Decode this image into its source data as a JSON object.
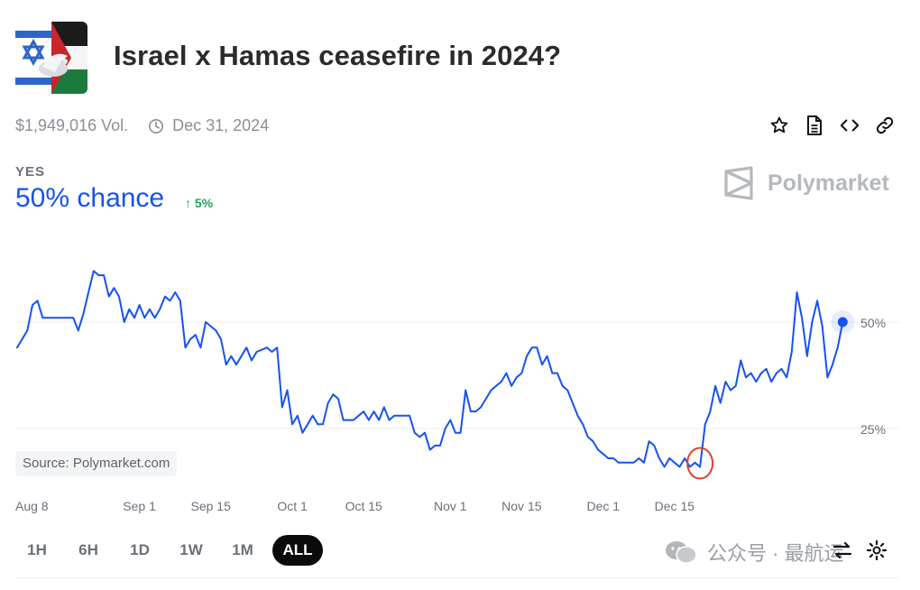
{
  "market": {
    "title": "Israel x Hamas ceasefire in 2024?",
    "volume": "$1,949,016 Vol.",
    "end_date": "Dec 31, 2024",
    "outcome_label": "YES",
    "chance": "50% chance",
    "change": "5%",
    "brand": "Polymarket",
    "source": "Source: Polymarket.com"
  },
  "actions": [
    "star-icon",
    "document-icon",
    "embed-code-icon",
    "link-icon"
  ],
  "time_ranges": [
    {
      "label": "1H",
      "active": false
    },
    {
      "label": "6H",
      "active": false
    },
    {
      "label": "1D",
      "active": false
    },
    {
      "label": "1W",
      "active": false
    },
    {
      "label": "1M",
      "active": false
    },
    {
      "label": "ALL",
      "active": true
    }
  ],
  "watermark": {
    "text": "公众号 · 最航运"
  },
  "colors": {
    "line": "#1652f0",
    "green": "#27a35a",
    "highlight_circle": "#e0402b"
  },
  "chart_data": {
    "type": "line",
    "x_tick_labels": [
      "Aug 8",
      "Sep 1",
      "Sep 15",
      "Oct 1",
      "Oct 15",
      "Nov 1",
      "Nov 15",
      "Dec 1",
      "Dec 15"
    ],
    "x_tick_dates": [
      "2024-08-08",
      "2024-09-01",
      "2024-09-15",
      "2024-10-01",
      "2024-10-15",
      "2024-11-01",
      "2024-11-15",
      "2024-12-01",
      "2024-12-15"
    ],
    "y_tick_labels": [
      "50%",
      "25%"
    ],
    "y_ticks": [
      50,
      25
    ],
    "ylim": [
      13,
      64
    ],
    "grid": true,
    "series": [
      {
        "points": [
          [
            "2024-08-08",
            44
          ],
          [
            "2024-08-09",
            46
          ],
          [
            "2024-08-10",
            48
          ],
          [
            "2024-08-11",
            54
          ],
          [
            "2024-08-12",
            55
          ],
          [
            "2024-08-13",
            51
          ],
          [
            "2024-08-15",
            51
          ],
          [
            "2024-08-17",
            51
          ],
          [
            "2024-08-19",
            51
          ],
          [
            "2024-08-20",
            48
          ],
          [
            "2024-08-21",
            52
          ],
          [
            "2024-08-22",
            57
          ],
          [
            "2024-08-23",
            62
          ],
          [
            "2024-08-24",
            61
          ],
          [
            "2024-08-25",
            61
          ],
          [
            "2024-08-26",
            56
          ],
          [
            "2024-08-27",
            58
          ],
          [
            "2024-08-28",
            56
          ],
          [
            "2024-08-29",
            50
          ],
          [
            "2024-08-30",
            53
          ],
          [
            "2024-08-31",
            51
          ],
          [
            "2024-09-01",
            54
          ],
          [
            "2024-09-02",
            51
          ],
          [
            "2024-09-03",
            53
          ],
          [
            "2024-09-04",
            51
          ],
          [
            "2024-09-05",
            53
          ],
          [
            "2024-09-06",
            56
          ],
          [
            "2024-09-07",
            55
          ],
          [
            "2024-09-08",
            57
          ],
          [
            "2024-09-09",
            55
          ],
          [
            "2024-09-10",
            44
          ],
          [
            "2024-09-11",
            46
          ],
          [
            "2024-09-12",
            47
          ],
          [
            "2024-09-13",
            44
          ],
          [
            "2024-09-14",
            50
          ],
          [
            "2024-09-16",
            48
          ],
          [
            "2024-09-17",
            46
          ],
          [
            "2024-09-18",
            40
          ],
          [
            "2024-09-19",
            42
          ],
          [
            "2024-09-20",
            40
          ],
          [
            "2024-09-21",
            42
          ],
          [
            "2024-09-22",
            44
          ],
          [
            "2024-09-23",
            41
          ],
          [
            "2024-09-24",
            43
          ],
          [
            "2024-09-26",
            44
          ],
          [
            "2024-09-27",
            43
          ],
          [
            "2024-09-28",
            44
          ],
          [
            "2024-09-29",
            30
          ],
          [
            "2024-09-30",
            34
          ],
          [
            "2024-10-01",
            26
          ],
          [
            "2024-10-02",
            28
          ],
          [
            "2024-10-03",
            24
          ],
          [
            "2024-10-04",
            26
          ],
          [
            "2024-10-05",
            28
          ],
          [
            "2024-10-06",
            26
          ],
          [
            "2024-10-07",
            26
          ],
          [
            "2024-10-08",
            31
          ],
          [
            "2024-10-09",
            33
          ],
          [
            "2024-10-10",
            32
          ],
          [
            "2024-10-11",
            27
          ],
          [
            "2024-10-13",
            27
          ],
          [
            "2024-10-14",
            28
          ],
          [
            "2024-10-15",
            29
          ],
          [
            "2024-10-16",
            27
          ],
          [
            "2024-10-17",
            29
          ],
          [
            "2024-10-18",
            27
          ],
          [
            "2024-10-19",
            30
          ],
          [
            "2024-10-20",
            27
          ],
          [
            "2024-10-21",
            28
          ],
          [
            "2024-10-22",
            28
          ],
          [
            "2024-10-24",
            28
          ],
          [
            "2024-10-25",
            24
          ],
          [
            "2024-10-26",
            23
          ],
          [
            "2024-10-27",
            24
          ],
          [
            "2024-10-28",
            20
          ],
          [
            "2024-10-29",
            21
          ],
          [
            "2024-10-30",
            21
          ],
          [
            "2024-10-31",
            25
          ],
          [
            "2024-11-01",
            27
          ],
          [
            "2024-11-02",
            24
          ],
          [
            "2024-11-03",
            24
          ],
          [
            "2024-11-04",
            34
          ],
          [
            "2024-11-05",
            29
          ],
          [
            "2024-11-06",
            29
          ],
          [
            "2024-11-07",
            30
          ],
          [
            "2024-11-08",
            32
          ],
          [
            "2024-11-09",
            34
          ],
          [
            "2024-11-10",
            35
          ],
          [
            "2024-11-11",
            36
          ],
          [
            "2024-11-12",
            38
          ],
          [
            "2024-11-13",
            35
          ],
          [
            "2024-11-14",
            37
          ],
          [
            "2024-11-15",
            38
          ],
          [
            "2024-11-16",
            42
          ],
          [
            "2024-11-17",
            44
          ],
          [
            "2024-11-18",
            44
          ],
          [
            "2024-11-19",
            40
          ],
          [
            "2024-11-20",
            42
          ],
          [
            "2024-11-21",
            38
          ],
          [
            "2024-11-22",
            38
          ],
          [
            "2024-11-23",
            35
          ],
          [
            "2024-11-24",
            34
          ],
          [
            "2024-11-25",
            31
          ],
          [
            "2024-11-26",
            28
          ],
          [
            "2024-11-27",
            26
          ],
          [
            "2024-11-28",
            23
          ],
          [
            "2024-11-29",
            22
          ],
          [
            "2024-11-30",
            20
          ],
          [
            "2024-12-01",
            19
          ],
          [
            "2024-12-02",
            18
          ],
          [
            "2024-12-03",
            18
          ],
          [
            "2024-12-04",
            17
          ],
          [
            "2024-12-06",
            17
          ],
          [
            "2024-12-07",
            17
          ],
          [
            "2024-12-08",
            18
          ],
          [
            "2024-12-09",
            17
          ],
          [
            "2024-12-10",
            22
          ],
          [
            "2024-12-11",
            21
          ],
          [
            "2024-12-12",
            18
          ],
          [
            "2024-12-13",
            16
          ],
          [
            "2024-12-14",
            18
          ],
          [
            "2024-12-15",
            17
          ],
          [
            "2024-12-16",
            16
          ],
          [
            "2024-12-17",
            18
          ],
          [
            "2024-12-18",
            16
          ],
          [
            "2024-12-19",
            17
          ],
          [
            "2024-12-20",
            16
          ],
          [
            "2024-12-21",
            26
          ],
          [
            "2024-12-22",
            29
          ],
          [
            "2024-12-23",
            35
          ],
          [
            "2024-12-24",
            31
          ],
          [
            "2024-12-25",
            36
          ],
          [
            "2024-12-26",
            34
          ],
          [
            "2024-12-27",
            35
          ],
          [
            "2024-12-28",
            41
          ],
          [
            "2024-12-29",
            37
          ],
          [
            "2024-12-30",
            38
          ],
          [
            "2024-12-31",
            36
          ],
          [
            "2025-01-01",
            38
          ],
          [
            "2025-01-02",
            39
          ],
          [
            "2025-01-03",
            36
          ],
          [
            "2025-01-04",
            38
          ],
          [
            "2025-01-05",
            39
          ],
          [
            "2025-01-06",
            37
          ],
          [
            "2025-01-07",
            43
          ],
          [
            "2025-01-08",
            57
          ],
          [
            "2025-01-09",
            51
          ],
          [
            "2025-01-10",
            42
          ],
          [
            "2025-01-11",
            50
          ],
          [
            "2025-01-12",
            55
          ],
          [
            "2025-01-13",
            49
          ],
          [
            "2025-01-14",
            37
          ],
          [
            "2025-01-15",
            40
          ],
          [
            "2025-01-16",
            44
          ],
          [
            "2025-01-17",
            50
          ]
        ]
      }
    ],
    "last_value": 50,
    "annotation": {
      "type": "circle",
      "date": "2024-12-20",
      "value": 16
    }
  }
}
